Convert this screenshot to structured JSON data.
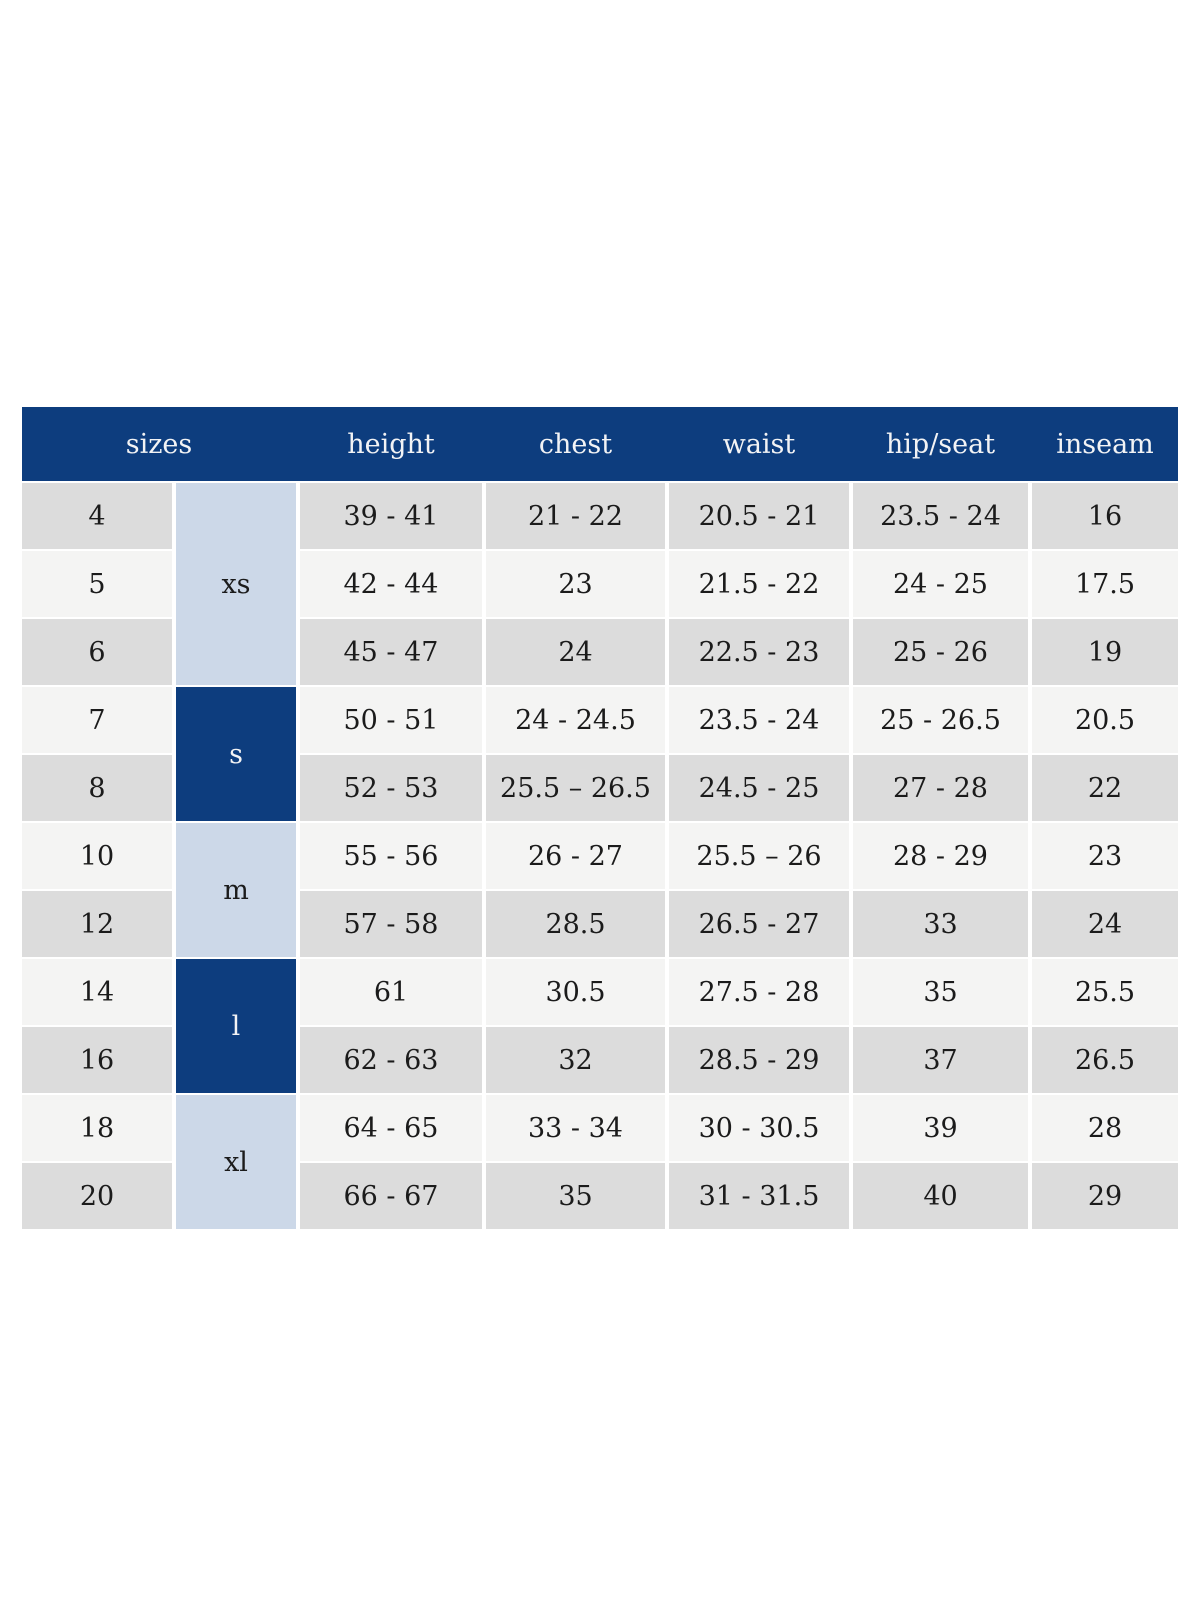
{
  "table": {
    "headers": [
      "sizes",
      "height",
      "chest",
      "waist",
      "hip/seat",
      "inseam"
    ],
    "groups": [
      {
        "label": "xs",
        "rows": 3
      },
      {
        "label": "s",
        "rows": 2
      },
      {
        "label": "m",
        "rows": 2
      },
      {
        "label": "l",
        "rows": 2
      },
      {
        "label": "xl",
        "rows": 2
      }
    ],
    "rows": [
      {
        "size": "4",
        "height": "39 - 41",
        "chest": "21 - 22",
        "waist": "20.5 - 21",
        "hip": "23.5 - 24",
        "inseam": "16"
      },
      {
        "size": "5",
        "height": "42 - 44",
        "chest": "23",
        "waist": "21.5 - 22",
        "hip": "24 - 25",
        "inseam": "17.5"
      },
      {
        "size": "6",
        "height": "45 - 47",
        "chest": "24",
        "waist": "22.5 - 23",
        "hip": "25 - 26",
        "inseam": "19"
      },
      {
        "size": "7",
        "height": "50 - 51",
        "chest": "24 - 24.5",
        "waist": "23.5 - 24",
        "hip": "25 - 26.5",
        "inseam": "20.5"
      },
      {
        "size": "8",
        "height": "52 - 53",
        "chest": "25.5 – 26.5",
        "waist": "24.5 - 25",
        "hip": "27 - 28",
        "inseam": "22"
      },
      {
        "size": "10",
        "height": "55 - 56",
        "chest": "26 - 27",
        "waist": "25.5 – 26",
        "hip": "28 - 29",
        "inseam": "23"
      },
      {
        "size": "12",
        "height": "57 - 58",
        "chest": "28.5",
        "waist": "26.5 - 27",
        "hip": "33",
        "inseam": "24"
      },
      {
        "size": "14",
        "height": "61",
        "chest": "30.5",
        "waist": "27.5 - 28",
        "hip": "35",
        "inseam": "25.5"
      },
      {
        "size": "16",
        "height": "62 - 63",
        "chest": "32",
        "waist": "28.5 - 29",
        "hip": "37",
        "inseam": "26.5"
      },
      {
        "size": "18",
        "height": "64 - 65",
        "chest": "33 - 34",
        "waist": "30 - 30.5",
        "hip": "39",
        "inseam": "28"
      },
      {
        "size": "20",
        "height": "66 - 67",
        "chest": "35",
        "waist": "31 - 31.5",
        "hip": "40",
        "inseam": "29"
      }
    ],
    "colors": {
      "header_background": "#0d3d7e",
      "header_text": "#f2f3f5",
      "group_light_blue": "#ccd8e8",
      "group_dark_blue": "#0d3d7e",
      "row_gray": "#dcdcdc",
      "row_light": "#f4f4f3",
      "body_text": "#1b1b1b",
      "page_background": "#ffffff"
    }
  }
}
